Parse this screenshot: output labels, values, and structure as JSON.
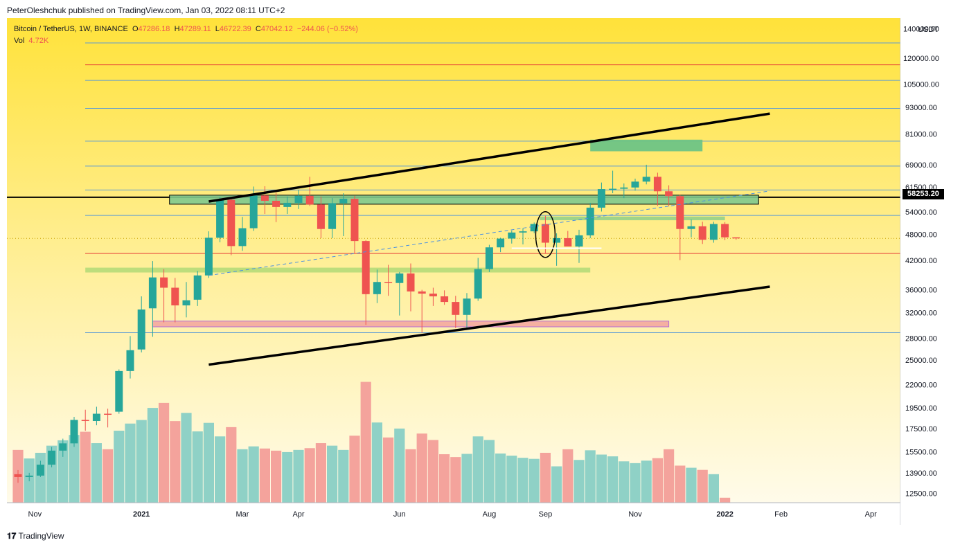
{
  "header": {
    "published": "PeterOleshchuk published on TradingView.com, Jan 03, 2022 08:11 UTC+2"
  },
  "legend": {
    "symbol": "Bitcoin / TetherUS, 1W, BINANCE",
    "open_label": "O",
    "open": "47286.18",
    "high_label": "H",
    "high": "47289.11",
    "low_label": "L",
    "low": "46722.39",
    "close_label": "C",
    "close": "47042.12",
    "change": "−244.06 (−0.52%)",
    "vol_label": "Vol",
    "vol": "4.72K"
  },
  "last_price": "58253.20",
  "footer": {
    "brand": "TradingView"
  },
  "colors": {
    "up": "#26a69a",
    "down": "#ef5350",
    "vol_up": "#8fd1c6",
    "vol_down": "#f4a39c"
  },
  "chart_data": {
    "type": "candlestick",
    "title": "Bitcoin / TetherUS, 1W, BINANCE",
    "currency": "USDT",
    "y_scale": "log",
    "y_ticks": [
      "140000.00",
      "120000.00",
      "105000.00",
      "93000.00",
      "81000.00",
      "69000.00",
      "61500.00",
      "54000.00",
      "48000.00",
      "42000.00",
      "36000.00",
      "32000.00",
      "28000.00",
      "25000.00",
      "22000.00",
      "19500.00",
      "17500.00",
      "15500.00",
      "13900.00",
      "12500.00"
    ],
    "y_tick_values": [
      140000,
      120000,
      105000,
      93000,
      81000,
      69000,
      61500,
      54000,
      48000,
      42000,
      36000,
      32000,
      28000,
      25000,
      22000,
      19500,
      17500,
      15500,
      13900,
      12500
    ],
    "x_ticks": [
      "Nov",
      "2021",
      "Mar",
      "Apr",
      "Jun",
      "Aug",
      "Sep",
      "Nov",
      "2022",
      "Feb",
      "Apr"
    ],
    "x_tick_weeks": [
      1.5,
      11,
      20,
      25,
      34,
      42,
      47,
      55,
      63,
      68,
      76
    ],
    "ylim": [
      11900,
      148000
    ],
    "horizontal_levels": [
      130000,
      116000,
      107000,
      92500,
      78000,
      68500,
      60500,
      53000,
      43500,
      28800
    ],
    "candles_ohlc": [
      [
        13800,
        14100,
        13200,
        13600
      ],
      [
        13600,
        13900,
        13300,
        13700
      ],
      [
        13700,
        14800,
        13600,
        14500
      ],
      [
        14500,
        15900,
        14300,
        15600
      ],
      [
        15600,
        16600,
        15100,
        16200
      ],
      [
        16200,
        18600,
        15900,
        18300
      ],
      [
        18300,
        19300,
        17300,
        18200
      ],
      [
        18200,
        19600,
        17800,
        18900
      ],
      [
        18900,
        19400,
        17600,
        18800
      ],
      [
        19100,
        23800,
        18900,
        23600
      ],
      [
        23600,
        28300,
        22700,
        26300
      ],
      [
        26400,
        34800,
        26000,
        32500
      ],
      [
        32700,
        41800,
        28200,
        38400
      ],
      [
        38400,
        40100,
        30400,
        36400
      ],
      [
        36400,
        38300,
        30400,
        33200
      ],
      [
        33200,
        37500,
        31200,
        34100
      ],
      [
        34200,
        39700,
        33100,
        38800
      ],
      [
        38800,
        48800,
        38300,
        47200
      ],
      [
        47200,
        58300,
        46100,
        57500
      ],
      [
        57500,
        57800,
        43100,
        45200
      ],
      [
        45200,
        52600,
        44100,
        49600
      ],
      [
        49600,
        61600,
        48900,
        58800
      ],
      [
        58800,
        61700,
        53400,
        57200
      ],
      [
        57200,
        59700,
        51200,
        55400
      ],
      [
        55400,
        58500,
        53400,
        56600
      ],
      [
        56600,
        60600,
        54800,
        58700
      ],
      [
        58700,
        64800,
        55700,
        56100
      ],
      [
        56100,
        58500,
        47100,
        49400
      ],
      [
        49400,
        58000,
        47100,
        56500
      ],
      [
        56500,
        59500,
        47600,
        57800
      ],
      [
        57800,
        58700,
        43500,
        46400
      ],
      [
        46400,
        46600,
        30000,
        35200
      ],
      [
        35200,
        40000,
        33600,
        37500
      ],
      [
        37500,
        41000,
        34900,
        37300
      ],
      [
        37300,
        39500,
        31500,
        39200
      ],
      [
        39200,
        41300,
        32200,
        35700
      ],
      [
        35700,
        36000,
        28800,
        35300
      ],
      [
        35300,
        36400,
        33100,
        34800
      ],
      [
        34800,
        35900,
        33300,
        33800
      ],
      [
        33800,
        34900,
        29500,
        31600
      ],
      [
        31600,
        35400,
        29300,
        34400
      ],
      [
        34400,
        42500,
        34000,
        40100
      ],
      [
        40100,
        45500,
        39500,
        44900
      ],
      [
        44900,
        47200,
        43800,
        47000
      ],
      [
        47000,
        49000,
        45800,
        48500
      ],
      [
        48500,
        49600,
        45600,
        48800
      ],
      [
        48800,
        51100,
        48300,
        50700
      ],
      [
        50700,
        52900,
        43600,
        46000
      ],
      [
        46000,
        48300,
        40800,
        47100
      ],
      [
        47100,
        48900,
        45800,
        45100
      ],
      [
        45100,
        49200,
        41400,
        47800
      ],
      [
        47800,
        56600,
        47100,
        55200
      ],
      [
        55200,
        62900,
        54100,
        60800
      ],
      [
        60800,
        66900,
        59500,
        60900
      ],
      [
        60900,
        62600,
        58000,
        61300
      ],
      [
        61300,
        64200,
        60300,
        63200
      ],
      [
        63200,
        69000,
        62300,
        64800
      ],
      [
        64800,
        66200,
        55700,
        60100
      ],
      [
        60100,
        62000,
        55600,
        58600
      ],
      [
        58600,
        59100,
        42000,
        49400
      ],
      [
        49400,
        51900,
        47300,
        50100
      ],
      [
        50100,
        51300,
        45700,
        46700
      ],
      [
        46700,
        51300,
        46000,
        50700
      ],
      [
        50700,
        51200,
        46600,
        47300
      ],
      [
        47300,
        47290,
        46720,
        47040
      ]
    ],
    "volumes": [
      148000,
      124000,
      140000,
      160000,
      175000,
      190000,
      199000,
      167000,
      150000,
      202000,
      222000,
      232000,
      266000,
      280000,
      229000,
      252000,
      200000,
      224000,
      186000,
      212000,
      150000,
      158000,
      152000,
      146000,
      142000,
      148000,
      153000,
      167000,
      160000,
      148000,
      188000,
      339000,
      225000,
      183000,
      208000,
      150000,
      194000,
      176000,
      136000,
      128000,
      137000,
      186000,
      176000,
      138000,
      132000,
      126000,
      123000,
      140000,
      102000,
      150000,
      120000,
      147000,
      135000,
      130000,
      116000,
      111000,
      118000,
      125000,
      150000,
      104000,
      98000,
      92000,
      80000,
      14000
    ],
    "volume_max": 340000,
    "annotations": [
      {
        "type": "zone",
        "label": "resistance 56k-60k",
        "from": 56200,
        "to": 58900,
        "w0": 13.5,
        "w1": 66,
        "color": "green-outline"
      },
      {
        "type": "zone",
        "label": "support 40k",
        "from": 39400,
        "to": 40400,
        "w0": 6,
        "w1": 51,
        "color": "yellowgreen"
      },
      {
        "type": "zone",
        "label": "support 30k",
        "from": 29700,
        "to": 30600,
        "w0": 12,
        "w1": 58,
        "color": "salmon"
      },
      {
        "type": "zone",
        "label": "target 78k",
        "from": 74000,
        "to": 78600,
        "w0": 51,
        "w1": 61,
        "color": "green"
      },
      {
        "type": "zone",
        "label": "retest 53k",
        "from": 51700,
        "to": 52700,
        "w0": 46.5,
        "w1": 63,
        "color": "green-light"
      },
      {
        "type": "trendline",
        "label": "upper channel",
        "p0": [
          17,
          57000
        ],
        "p1": [
          67,
          90000
        ]
      },
      {
        "type": "trendline",
        "label": "lower channel",
        "p0": [
          17,
          24400
        ],
        "p1": [
          67,
          36600
        ]
      },
      {
        "type": "trendline",
        "label": "dashed midline",
        "p0": [
          17,
          38800
        ],
        "p1": [
          67,
          60200
        ],
        "dashed": true
      },
      {
        "type": "ellipse",
        "label": "reversal circle",
        "w": 47,
        "p": 48000
      },
      {
        "type": "line",
        "label": "white pullback line",
        "w0": 44,
        "w1": 52,
        "p": 44700
      }
    ]
  }
}
